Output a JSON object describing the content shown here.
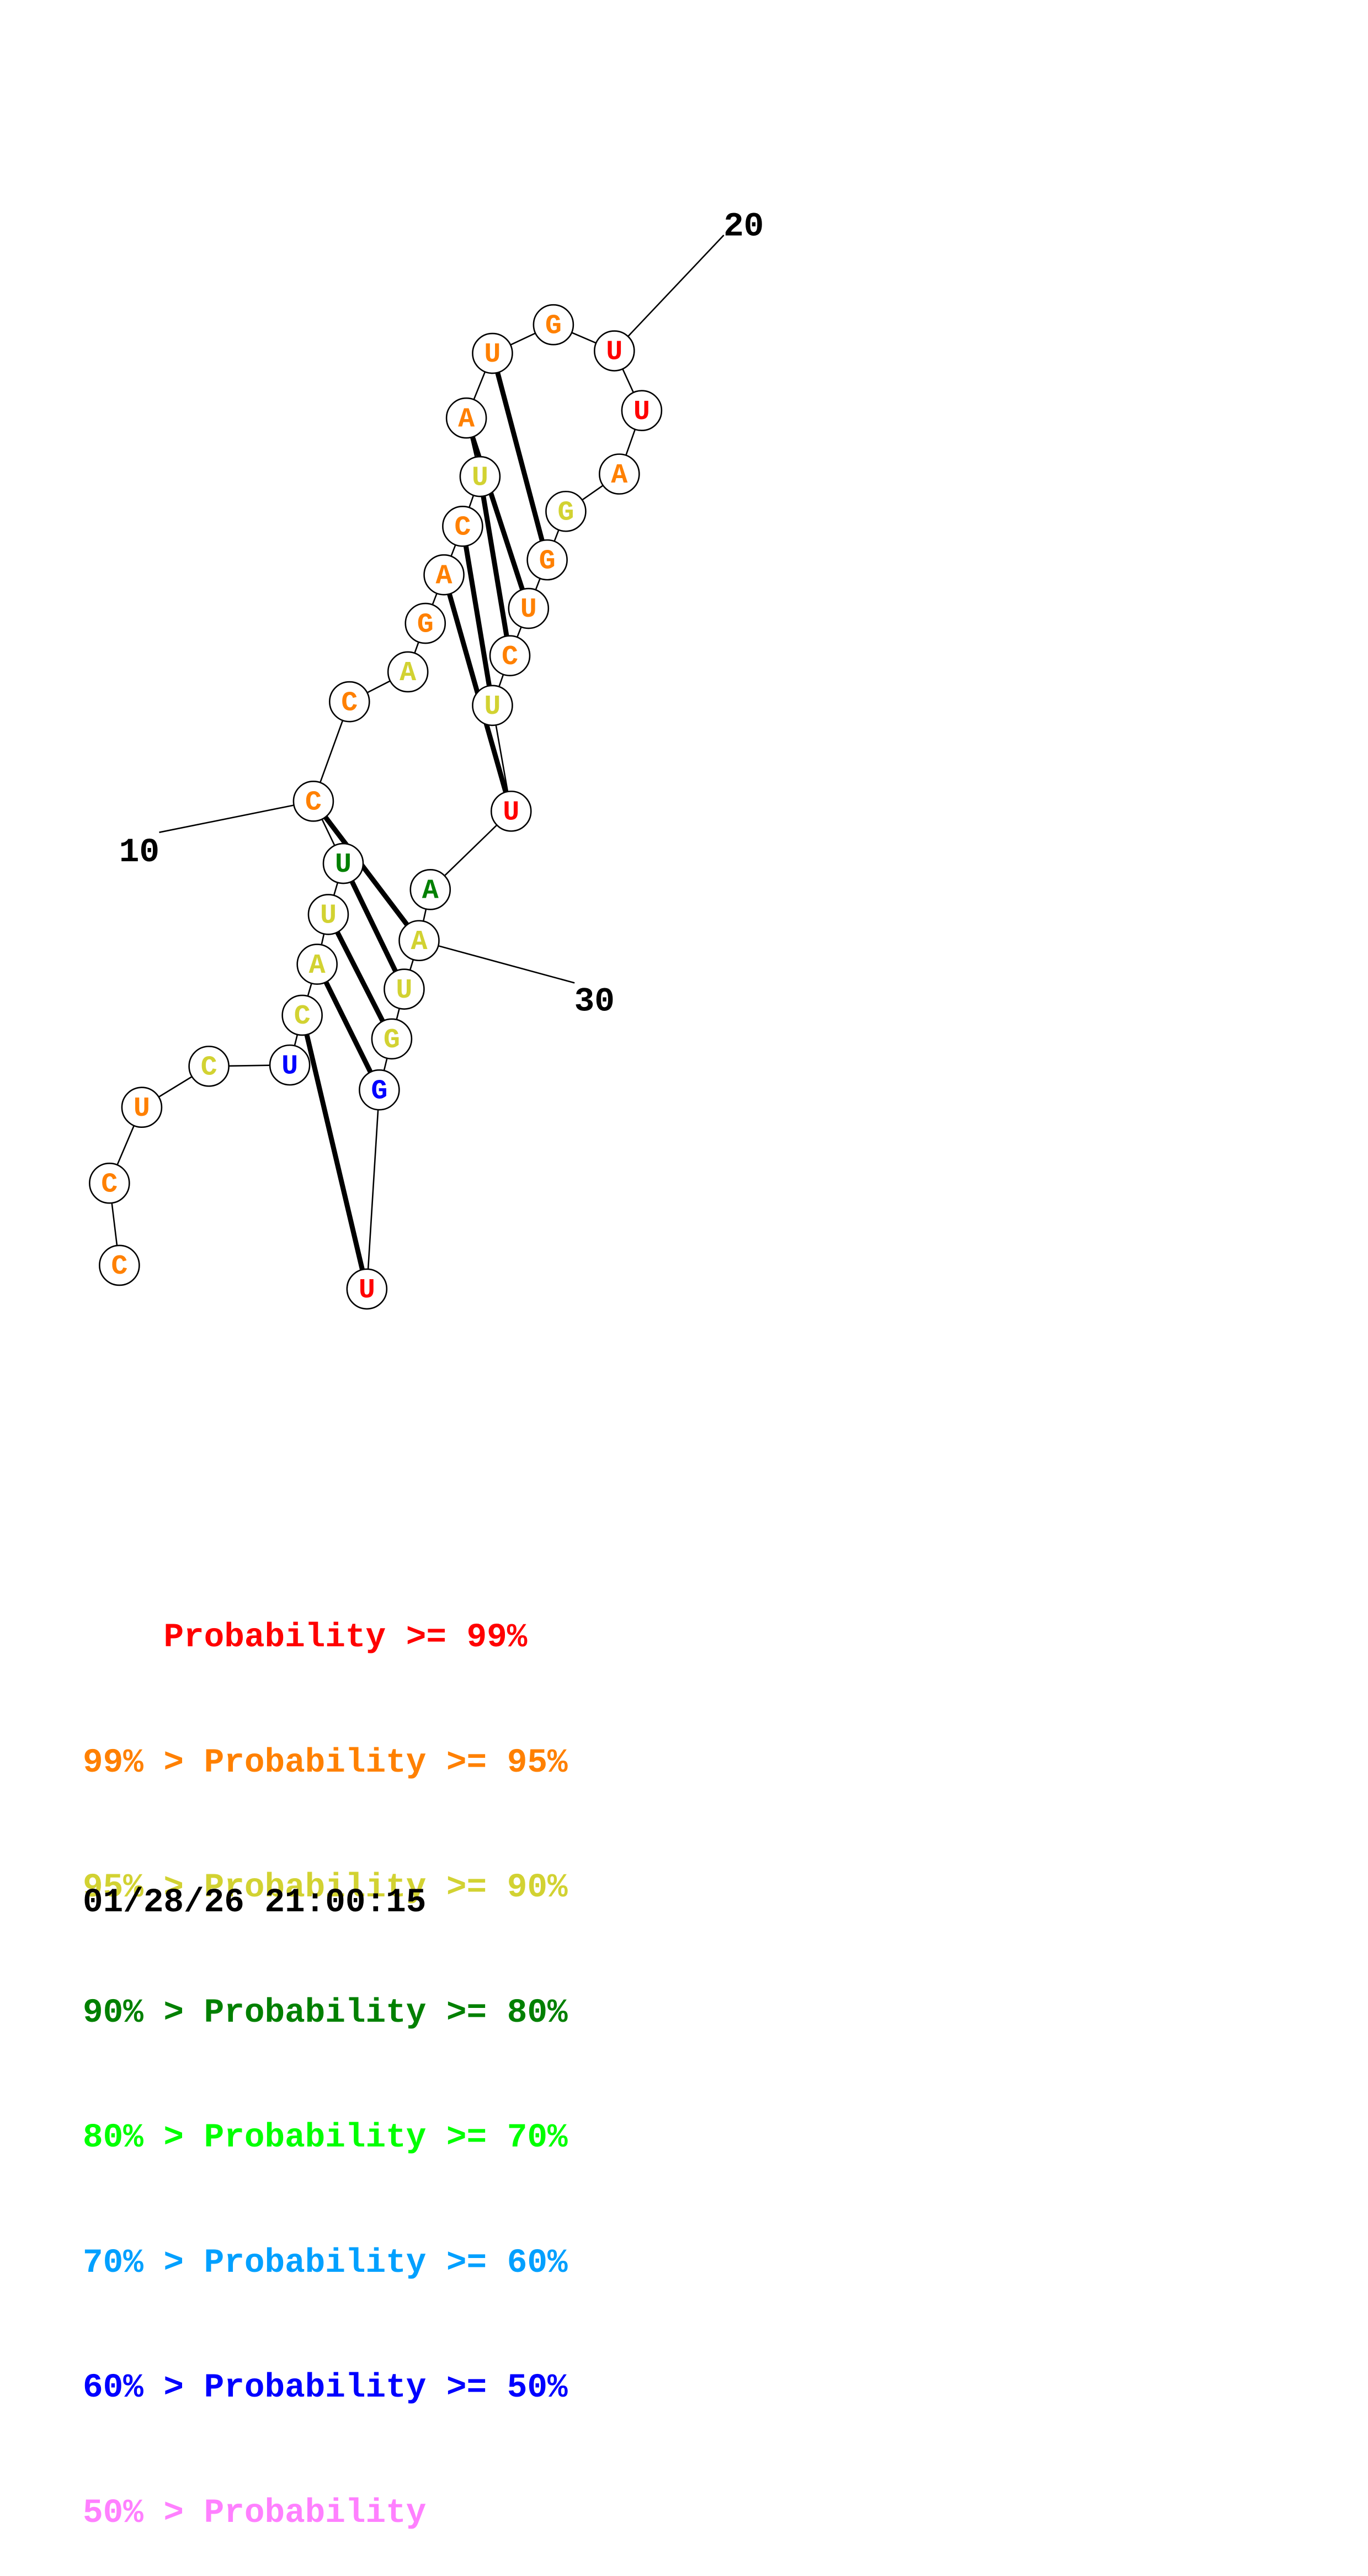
{
  "structure": {
    "sequence": [
      "C",
      "C",
      "U",
      "C",
      "U",
      "C",
      "A",
      "U",
      "U",
      "C",
      "C",
      "A",
      "G",
      "A",
      "C",
      "U",
      "A",
      "U",
      "G",
      "U",
      "U",
      "A",
      "G",
      "G",
      "U",
      "C",
      "U",
      "U",
      "A",
      "A",
      "U",
      "G",
      "G",
      "U"
    ],
    "probability_class": [
      1,
      1,
      1,
      2,
      6,
      2,
      2,
      2,
      3,
      1,
      1,
      2,
      1,
      1,
      1,
      2,
      1,
      1,
      1,
      0,
      0,
      1,
      2,
      1,
      1,
      1,
      2,
      0,
      3,
      2,
      2,
      2,
      6,
      0
    ],
    "pairs": [
      [
        5,
        33
      ],
      [
        6,
        32
      ],
      [
        7,
        31
      ],
      [
        8,
        30
      ],
      [
        9,
        29
      ],
      [
        13,
        27
      ],
      [
        14,
        26
      ],
      [
        15,
        25
      ],
      [
        16,
        24
      ],
      [
        17,
        23
      ]
    ],
    "position_labels": [
      {
        "index": 10,
        "text": "10"
      },
      {
        "index": 20,
        "text": "20"
      },
      {
        "index": 30,
        "text": "30"
      }
    ]
  },
  "legend": {
    "lines": [
      {
        "prefix": "    ",
        "text": "Probability >= 99%",
        "color": "#ff0000"
      },
      {
        "prefix": "99% > ",
        "text": "Probability >= 95%",
        "color": "#ff8000"
      },
      {
        "prefix": "95% > ",
        "text": "Probability >= 90%",
        "color": "#d2d232"
      },
      {
        "prefix": "90% > ",
        "text": "Probability >= 80%",
        "color": "#008000"
      },
      {
        "prefix": "80% > ",
        "text": "Probability >= 70%",
        "color": "#00ff00"
      },
      {
        "prefix": "70% > ",
        "text": "Probability >= 60%",
        "color": "#00a0ff"
      },
      {
        "prefix": "60% > ",
        "text": "Probability >= 50%",
        "color": "#0000ff"
      },
      {
        "prefix": "50% > ",
        "text": "Probability",
        "color": "#ff80ff"
      }
    ]
  },
  "timestamp": "01/28/26 21:00:15",
  "colors": {
    "class_colors": [
      "#ff0000",
      "#ff8000",
      "#d2d232",
      "#008000",
      "#00ff00",
      "#00a0ff",
      "#0000ff",
      "#ff80ff"
    ],
    "stroke": "#000000",
    "background": "#ffffff"
  }
}
